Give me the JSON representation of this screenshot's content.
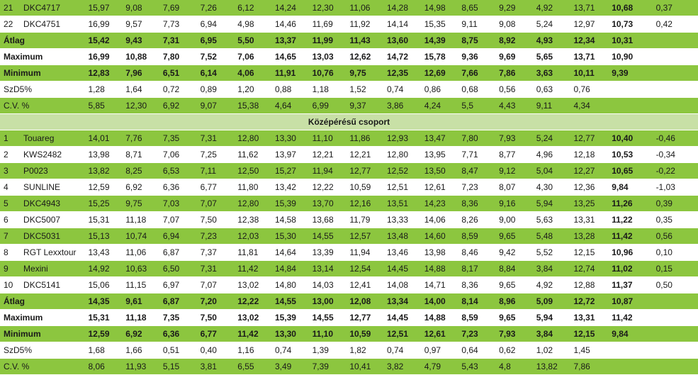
{
  "section_title": "Középérésű csoport",
  "rows": [
    {
      "type": "item",
      "bg": "green",
      "idx": "21",
      "name": "DKC4717",
      "cells": [
        "15,97",
        "9,08",
        "7,69",
        "7,26",
        "6,12",
        "14,24",
        "12,30",
        "11,06",
        "14,28",
        "14,98",
        "8,65",
        "9,29",
        "4,92",
        "13,71"
      ],
      "avg": "10,68",
      "diff": "0,37"
    },
    {
      "type": "item",
      "bg": "white",
      "idx": "22",
      "name": "DKC4751",
      "cells": [
        "16,99",
        "9,57",
        "7,73",
        "6,94",
        "4,98",
        "14,46",
        "11,69",
        "11,92",
        "14,14",
        "15,35",
        "9,11",
        "9,08",
        "5,24",
        "12,97"
      ],
      "avg": "10,73",
      "diff": "0,42"
    },
    {
      "type": "stat",
      "bg": "green",
      "bold": true,
      "label": "Átlag",
      "cells": [
        "15,42",
        "9,43",
        "7,31",
        "6,95",
        "5,50",
        "13,37",
        "11,99",
        "11,43",
        "13,60",
        "14,39",
        "8,75",
        "8,92",
        "4,93",
        "12,34"
      ],
      "avg": "10,31",
      "diff": ""
    },
    {
      "type": "stat",
      "bg": "white",
      "bold": true,
      "label": "Maximum",
      "cells": [
        "16,99",
        "10,88",
        "7,80",
        "7,52",
        "7,06",
        "14,65",
        "13,03",
        "12,62",
        "14,72",
        "15,78",
        "9,36",
        "9,69",
        "5,65",
        "13,71"
      ],
      "avg": "10,90",
      "diff": ""
    },
    {
      "type": "stat",
      "bg": "green",
      "bold": true,
      "label": "Minimum",
      "cells": [
        "12,83",
        "7,96",
        "6,51",
        "6,14",
        "4,06",
        "11,91",
        "10,76",
        "9,75",
        "12,35",
        "12,69",
        "7,66",
        "7,86",
        "3,63",
        "10,11"
      ],
      "avg": "9,39",
      "diff": ""
    },
    {
      "type": "stat",
      "bg": "white",
      "bold": false,
      "label": "SzD5%",
      "cells": [
        "1,28",
        "1,64",
        "0,72",
        "0,89",
        "1,20",
        "0,88",
        "1,18",
        "1,52",
        "0,74",
        "0,86",
        "0,68",
        "0,56",
        "0,63",
        "0,76"
      ],
      "avg": "",
      "diff": ""
    },
    {
      "type": "stat",
      "bg": "green",
      "bold": false,
      "label": "C.V. %",
      "cells": [
        "5,85",
        "12,30",
        "6,92",
        "9,07",
        "15,38",
        "4,64",
        "6,99",
        "9,37",
        "3,86",
        "4,24",
        "5,5",
        "4,43",
        "9,11",
        "4,34"
      ],
      "avg": "",
      "diff": ""
    },
    {
      "type": "title"
    },
    {
      "type": "item",
      "bg": "green",
      "idx": "1",
      "name": "Touareg",
      "cells": [
        "14,01",
        "7,76",
        "7,35",
        "7,31",
        "12,80",
        "13,30",
        "11,10",
        "11,86",
        "12,93",
        "13,47",
        "7,80",
        "7,93",
        "5,24",
        "12,77"
      ],
      "avg": "10,40",
      "diff": "-0,46"
    },
    {
      "type": "item",
      "bg": "white",
      "idx": "2",
      "name": "KWS2482",
      "cells": [
        "13,98",
        "8,71",
        "7,06",
        "7,25",
        "11,62",
        "13,97",
        "12,21",
        "12,21",
        "12,80",
        "13,95",
        "7,71",
        "8,77",
        "4,96",
        "12,18"
      ],
      "avg": "10,53",
      "diff": "-0,34"
    },
    {
      "type": "item",
      "bg": "green",
      "idx": "3",
      "name": "P0023",
      "cells": [
        "13,82",
        "8,25",
        "6,53",
        "7,11",
        "12,50",
        "15,27",
        "11,94",
        "12,77",
        "12,52",
        "13,50",
        "8,47",
        "9,12",
        "5,04",
        "12,27"
      ],
      "avg": "10,65",
      "diff": "-0,22"
    },
    {
      "type": "item",
      "bg": "white",
      "idx": "4",
      "name": "SUNLINE",
      "cells": [
        "12,59",
        "6,92",
        "6,36",
        "6,77",
        "11,80",
        "13,42",
        "12,22",
        "10,59",
        "12,51",
        "12,61",
        "7,23",
        "8,07",
        "4,30",
        "12,36"
      ],
      "avg": "9,84",
      "diff": "-1,03"
    },
    {
      "type": "item",
      "bg": "green",
      "idx": "5",
      "name": "DKC4943",
      "cells": [
        "15,25",
        "9,75",
        "7,03",
        "7,07",
        "12,80",
        "15,39",
        "13,70",
        "12,16",
        "13,51",
        "14,23",
        "8,36",
        "9,16",
        "5,94",
        "13,25"
      ],
      "avg": "11,26",
      "diff": "0,39"
    },
    {
      "type": "item",
      "bg": "white",
      "idx": "6",
      "name": "DKC5007",
      "cells": [
        "15,31",
        "11,18",
        "7,07",
        "7,50",
        "12,38",
        "14,58",
        "13,68",
        "11,79",
        "13,33",
        "14,06",
        "8,26",
        "9,00",
        "5,63",
        "13,31"
      ],
      "avg": "11,22",
      "diff": "0,35"
    },
    {
      "type": "item",
      "bg": "green",
      "idx": "7",
      "name": "DKC5031",
      "cells": [
        "15,13",
        "10,74",
        "6,94",
        "7,23",
        "12,03",
        "15,30",
        "14,55",
        "12,57",
        "13,48",
        "14,60",
        "8,59",
        "9,65",
        "5,48",
        "13,28"
      ],
      "avg": "11,42",
      "diff": "0,56"
    },
    {
      "type": "item",
      "bg": "white",
      "idx": "8",
      "name": "RGT Lexxtour",
      "cells": [
        "13,43",
        "11,06",
        "6,87",
        "7,37",
        "11,81",
        "14,64",
        "13,39",
        "11,94",
        "13,46",
        "13,98",
        "8,46",
        "9,42",
        "5,52",
        "12,15"
      ],
      "avg": "10,96",
      "diff": "0,10"
    },
    {
      "type": "item",
      "bg": "green",
      "idx": "9",
      "name": "Mexini",
      "cells": [
        "14,92",
        "10,63",
        "6,50",
        "7,31",
        "11,42",
        "14,84",
        "13,14",
        "12,54",
        "14,45",
        "14,88",
        "8,17",
        "8,84",
        "3,84",
        "12,74"
      ],
      "avg": "11,02",
      "diff": "0,15"
    },
    {
      "type": "item",
      "bg": "white",
      "idx": "10",
      "name": "DKC5141",
      "cells": [
        "15,06",
        "11,15",
        "6,97",
        "7,07",
        "13,02",
        "14,80",
        "14,03",
        "12,41",
        "14,08",
        "14,71",
        "8,36",
        "9,65",
        "4,92",
        "12,88"
      ],
      "avg": "11,37",
      "diff": "0,50"
    },
    {
      "type": "stat",
      "bg": "green",
      "bold": true,
      "label": "Átlag",
      "cells": [
        "14,35",
        "9,61",
        "6,87",
        "7,20",
        "12,22",
        "14,55",
        "13,00",
        "12,08",
        "13,34",
        "14,00",
        "8,14",
        "8,96",
        "5,09",
        "12,72"
      ],
      "avg": "10,87",
      "diff": ""
    },
    {
      "type": "stat",
      "bg": "white",
      "bold": true,
      "label": "Maximum",
      "cells": [
        "15,31",
        "11,18",
        "7,35",
        "7,50",
        "13,02",
        "15,39",
        "14,55",
        "12,77",
        "14,45",
        "14,88",
        "8,59",
        "9,65",
        "5,94",
        "13,31"
      ],
      "avg": "11,42",
      "diff": ""
    },
    {
      "type": "stat",
      "bg": "green",
      "bold": true,
      "label": "Minimum",
      "cells": [
        "12,59",
        "6,92",
        "6,36",
        "6,77",
        "11,42",
        "13,30",
        "11,10",
        "10,59",
        "12,51",
        "12,61",
        "7,23",
        "7,93",
        "3,84",
        "12,15"
      ],
      "avg": "9,84",
      "diff": ""
    },
    {
      "type": "stat",
      "bg": "white",
      "bold": false,
      "label": "SzD5%",
      "cells": [
        "1,68",
        "1,66",
        "0,51",
        "0,40",
        "1,16",
        "0,74",
        "1,39",
        "1,82",
        "0,74",
        "0,97",
        "0,64",
        "0,62",
        "1,02",
        "1,45"
      ],
      "avg": "",
      "diff": ""
    },
    {
      "type": "stat",
      "bg": "green",
      "bold": false,
      "label": "C.V. %",
      "cells": [
        "8,06",
        "11,93",
        "5,15",
        "3,81",
        "6,55",
        "3,49",
        "7,39",
        "10,41",
        "3,82",
        "4,79",
        "5,43",
        "4,8",
        "13,82",
        "7,86"
      ],
      "avg": "",
      "diff": ""
    }
  ]
}
